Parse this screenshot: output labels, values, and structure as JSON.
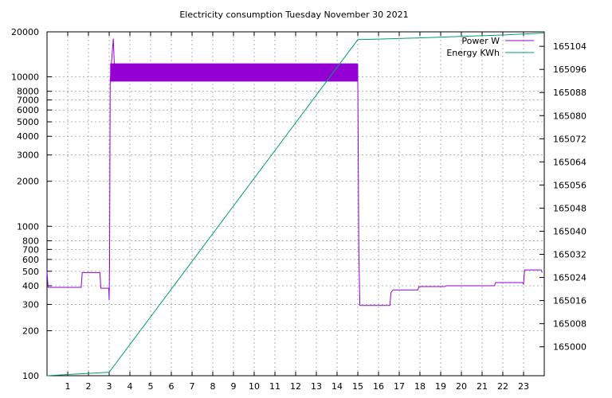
{
  "chart_data": {
    "type": "line",
    "title": "Electricity consumption Tuesday November 30 2021",
    "x_axis": {
      "min": 0,
      "max": 24,
      "ticks": [
        1,
        2,
        3,
        4,
        5,
        6,
        7,
        8,
        9,
        10,
        11,
        12,
        13,
        14,
        15,
        16,
        17,
        18,
        19,
        20,
        21,
        22,
        23
      ],
      "tick_labels": [
        "1",
        "2",
        "3",
        "4",
        "5",
        "6",
        "7",
        "8",
        "9",
        "10",
        "11",
        "12",
        "13",
        "14",
        "15",
        "16",
        "17",
        "18",
        "19",
        "20",
        "21",
        "22",
        "23"
      ],
      "grid": true
    },
    "y_axis_left": {
      "scale": "log",
      "min": 100,
      "max": 20000,
      "ticks": [
        100,
        200,
        300,
        400,
        500,
        600,
        700,
        800,
        1000,
        2000,
        3000,
        4000,
        5000,
        6000,
        7000,
        8000,
        10000,
        20000
      ],
      "tick_labels": [
        "100",
        "200",
        "300",
        "400",
        "500",
        "600",
        "700",
        "800",
        "1000",
        "2000",
        "3000",
        "4000",
        "5000",
        "6000",
        "7000",
        "8000",
        "10000",
        "20000"
      ],
      "grid": true
    },
    "y_axis_right": {
      "scale": "linear",
      "min": 164990,
      "max": 165109,
      "ticks": [
        165000,
        165008,
        165016,
        165024,
        165032,
        165040,
        165048,
        165056,
        165064,
        165072,
        165080,
        165088,
        165096,
        165104
      ],
      "tick_labels": [
        "165000",
        "165008",
        "165016",
        "165024",
        "165032",
        "165040",
        "165048",
        "165056",
        "165064",
        "165072",
        "165080",
        "165088",
        "165096",
        "165104"
      ]
    },
    "legend": {
      "position": "top-right",
      "entries": [
        "Power W",
        "Energy KWh"
      ]
    },
    "series": [
      {
        "name": "Power W",
        "axis": "left",
        "color": "#9400d3",
        "points": [
          [
            0.0,
            500
          ],
          [
            0.05,
            390
          ],
          [
            1.65,
            390
          ],
          [
            1.7,
            490
          ],
          [
            2.55,
            490
          ],
          [
            2.6,
            385
          ],
          [
            2.98,
            385
          ],
          [
            3.0,
            320
          ],
          [
            3.02,
            600
          ],
          [
            3.05,
            9300
          ],
          [
            3.1,
            12000
          ],
          [
            3.2,
            18000
          ],
          [
            3.25,
            12000
          ],
          [
            15.0,
            12000
          ],
          [
            15.0,
            9300
          ],
          [
            15.05,
            680
          ],
          [
            15.1,
            295
          ],
          [
            16.55,
            295
          ],
          [
            16.6,
            360
          ],
          [
            16.7,
            375
          ],
          [
            17.9,
            375
          ],
          [
            17.95,
            395
          ],
          [
            19.2,
            395
          ],
          [
            19.25,
            400
          ],
          [
            21.6,
            400
          ],
          [
            21.65,
            420
          ],
          [
            22.95,
            420
          ],
          [
            23.0,
            410
          ],
          [
            23.05,
            510
          ],
          [
            23.85,
            510
          ],
          [
            23.9,
            490
          ]
        ],
        "fill_band": {
          "x_start": 3.05,
          "x_end": 15.0,
          "low": 9300,
          "high": 12300
        }
      },
      {
        "name": "Energy KWh",
        "axis": "right",
        "color": "#009e73",
        "points": [
          [
            0.0,
            164990.0
          ],
          [
            1.0,
            164990.4
          ],
          [
            2.0,
            164990.8
          ],
          [
            3.0,
            164991.2
          ],
          [
            15.0,
            165106.3
          ],
          [
            16.0,
            165106.5
          ],
          [
            18.0,
            165106.9
          ],
          [
            20.0,
            165107.4
          ],
          [
            22.0,
            165107.9
          ],
          [
            24.0,
            165108.6
          ]
        ]
      }
    ]
  }
}
